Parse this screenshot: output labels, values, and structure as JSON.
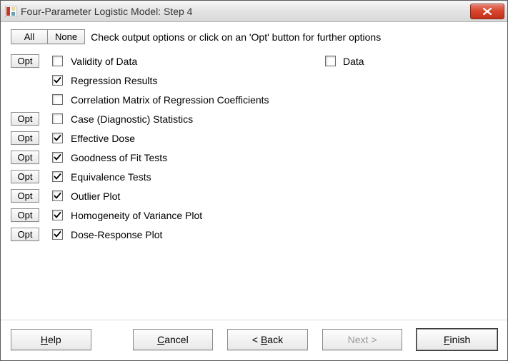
{
  "window": {
    "title": "Four-Parameter Logistic Model: Step 4",
    "close_label": "Close"
  },
  "toolbar": {
    "all_label": "All",
    "none_label": "None",
    "instruction": "Check output options or click on an 'Opt' button for further options",
    "opt_label": "Opt"
  },
  "options": [
    {
      "has_opt": true,
      "checked": false,
      "label": "Validity of Data",
      "second": {
        "checked": false,
        "label": "Data"
      }
    },
    {
      "has_opt": false,
      "checked": true,
      "label": "Regression Results"
    },
    {
      "has_opt": false,
      "checked": false,
      "label": "Correlation Matrix of Regression Coefficients"
    },
    {
      "has_opt": true,
      "checked": false,
      "label": "Case (Diagnostic) Statistics"
    },
    {
      "has_opt": true,
      "checked": true,
      "label": "Effective Dose"
    },
    {
      "has_opt": true,
      "checked": true,
      "label": "Goodness of Fit Tests"
    },
    {
      "has_opt": true,
      "checked": true,
      "label": "Equivalence Tests"
    },
    {
      "has_opt": true,
      "checked": true,
      "label": "Outlier Plot"
    },
    {
      "has_opt": true,
      "checked": true,
      "label": "Homogeneity of Variance Plot"
    },
    {
      "has_opt": true,
      "checked": true,
      "label": "Dose-Response Plot"
    }
  ],
  "footer": {
    "help": "Help",
    "cancel": "Cancel",
    "back": "Back",
    "back_prefix": "< ",
    "next": "Next",
    "next_suffix": " >",
    "finish": "Finish",
    "next_enabled": false
  },
  "colors": {
    "window_bg": "#f0f0f0",
    "content_bg": "#ffffff",
    "close_bg_top": "#e67f74",
    "close_bg_bottom": "#c13019",
    "button_border": "#8e8e8e",
    "text": "#000000",
    "disabled_text": "#9a9a9a"
  }
}
